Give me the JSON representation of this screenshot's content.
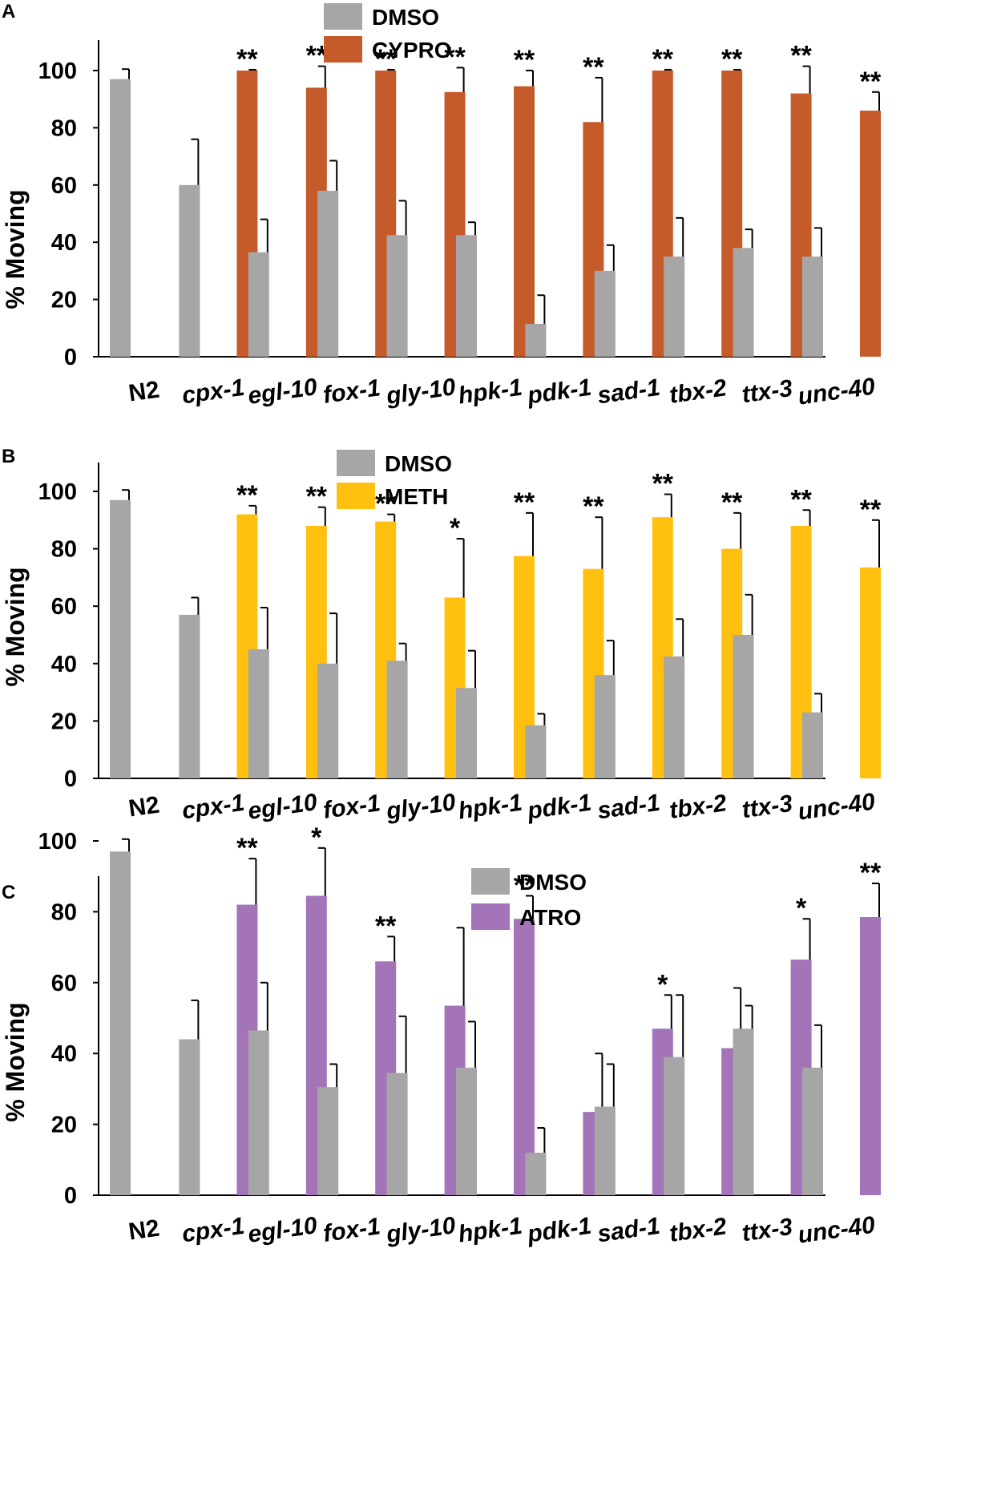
{
  "figure": {
    "categories": [
      "N2",
      "cpx-1",
      "egl-10",
      "fox-1",
      "gly-10",
      "hpk-1",
      "pdk-1",
      "sad-1",
      "tbx-2",
      "ttx-3",
      "unc-40"
    ]
  },
  "chart_data": [
    {
      "type": "bar",
      "panel": "A",
      "ylabel": "% Moving",
      "ylim": [
        0,
        110
      ],
      "yticks": [
        0,
        20,
        40,
        60,
        80,
        100
      ],
      "categories": [
        "N2",
        "cpx-1",
        "egl-10",
        "fox-1",
        "gly-10",
        "hpk-1",
        "pdk-1",
        "sad-1",
        "tbx-2",
        "ttx-3",
        "unc-40"
      ],
      "series": [
        {
          "name": "DMSO",
          "color": "#a6a6a6",
          "values": [
            97,
            60,
            36.5,
            58,
            42.5,
            42.5,
            11.5,
            30,
            35,
            38,
            35
          ],
          "errors": [
            3.5,
            16,
            11.5,
            10.5,
            12,
            4.5,
            10,
            9,
            13.5,
            6.5,
            10
          ]
        },
        {
          "name": "CYPRO",
          "color": "#c55a2a",
          "values": [
            null,
            100,
            94,
            100,
            92.5,
            94.5,
            82,
            100,
            100,
            92,
            86
          ],
          "errors": [
            null,
            0.3,
            7.5,
            0.3,
            8.5,
            5.5,
            15.5,
            0.3,
            0.3,
            9.5,
            6.5
          ]
        }
      ],
      "annotations": [
        "",
        "**",
        "**",
        "**",
        "**",
        "**",
        "**",
        "**",
        "**",
        "**",
        "**"
      ]
    },
    {
      "type": "bar",
      "panel": "B",
      "ylabel": "% Moving",
      "ylim": [
        0,
        110
      ],
      "yticks": [
        0,
        20,
        40,
        60,
        80,
        100
      ],
      "categories": [
        "N2",
        "cpx-1",
        "egl-10",
        "fox-1",
        "gly-10",
        "hpk-1",
        "pdk-1",
        "sad-1",
        "tbx-2",
        "ttx-3",
        "unc-40"
      ],
      "series": [
        {
          "name": "DMSO",
          "color": "#a6a6a6",
          "values": [
            97,
            57,
            45,
            40,
            41,
            31.5,
            18.5,
            36,
            42.5,
            50,
            23
          ],
          "errors": [
            3.5,
            6,
            14.5,
            17.5,
            6,
            13,
            4,
            12,
            13,
            14,
            6.5
          ]
        },
        {
          "name": "METH",
          "color": "#ffc010",
          "values": [
            null,
            92,
            88,
            89.5,
            63,
            77.5,
            73,
            91,
            80,
            88,
            73.5
          ],
          "errors": [
            null,
            3,
            6.5,
            2.5,
            20.5,
            15,
            18,
            8,
            12.5,
            5.5,
            16.5
          ]
        }
      ],
      "annotations": [
        "",
        "**",
        "**",
        "**",
        "*",
        "**",
        "**",
        "**",
        "**",
        "**",
        "**"
      ]
    },
    {
      "type": "bar",
      "panel": "C",
      "ylabel": "% Moving",
      "ylim": [
        0,
        110
      ],
      "yticks": [
        0,
        20,
        40,
        60,
        80,
        100
      ],
      "categories": [
        "N2",
        "cpx-1",
        "egl-10",
        "fox-1",
        "gly-10",
        "hpk-1",
        "pdk-1",
        "sad-1",
        "tbx-2",
        "ttx-3",
        "unc-40"
      ],
      "series": [
        {
          "name": "DMSO",
          "color": "#a6a6a6",
          "values": [
            97,
            44,
            46.5,
            30.5,
            34.5,
            36,
            12,
            25,
            39,
            47,
            36
          ],
          "errors": [
            3.5,
            11,
            13.5,
            6.5,
            16,
            13,
            7,
            12,
            17.5,
            6.5,
            12
          ]
        },
        {
          "name": "ATRO",
          "color": "#a374b8",
          "values": [
            null,
            82,
            84.5,
            66,
            53.5,
            78,
            23.5,
            47,
            41.5,
            66.5,
            78.5
          ],
          "errors": [
            null,
            13,
            13.5,
            7,
            22,
            6.5,
            16.5,
            9.5,
            17,
            11.5,
            9.5
          ]
        }
      ],
      "annotations": [
        "",
        "**",
        "*",
        "**",
        "",
        "**",
        "",
        "*",
        "",
        "*",
        "**"
      ]
    }
  ]
}
